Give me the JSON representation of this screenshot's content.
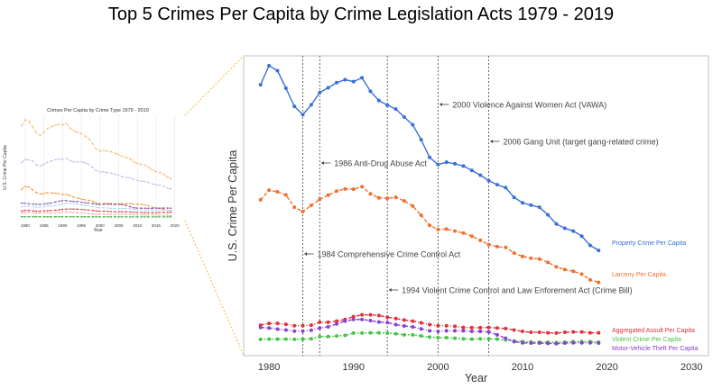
{
  "title": "Top 5 Crimes Per Capita by Crime Legislation Acts 1979 - 2019",
  "chart_data": [
    {
      "type": "line",
      "title": "",
      "xlabel": "Year",
      "ylabel": "U.S. Crime Per Capita",
      "xlim": [
        1977,
        2032
      ],
      "ylim": [
        264,
        5525
      ],
      "x_ticks": [
        1980,
        1990,
        2000,
        2010,
        2020,
        2030
      ],
      "y_ticks_shown": false,
      "grid": false,
      "legend": "labels at line ends, right",
      "x": [
        1979,
        1980,
        1981,
        1982,
        1983,
        1984,
        1985,
        1986,
        1987,
        1988,
        1989,
        1990,
        1991,
        1992,
        1993,
        1994,
        1995,
        1996,
        1997,
        1998,
        1999,
        2000,
        2001,
        2002,
        2003,
        2004,
        2005,
        2006,
        2007,
        2008,
        2009,
        2010,
        2011,
        2012,
        2013,
        2014,
        2015,
        2016,
        2017,
        2018,
        2019
      ],
      "series": [
        {
          "name": "Property Crime Per Capita",
          "color": "#3a6fd8",
          "dash": "solid",
          "values": [
            5017,
            5353,
            5264,
            4957,
            4638,
            4492,
            4666,
            4881,
            4964,
            5054,
            5107,
            5073,
            5140,
            4903,
            4740,
            4660,
            4591,
            4451,
            4316,
            4053,
            3744,
            3618,
            3658,
            3631,
            3591,
            3514,
            3432,
            3335,
            3264,
            3212,
            3041,
            2946,
            2905,
            2868,
            2734,
            2575,
            2500,
            2451,
            2362,
            2200,
            2110
          ]
        },
        {
          "name": "Larceny Per Capita",
          "color": "#f07030",
          "dash": "dashed",
          "values": [
            2999,
            3167,
            3139,
            3084,
            2869,
            2791,
            2901,
            3010,
            3081,
            3151,
            3189,
            3185,
            3229,
            3103,
            3033,
            3026,
            3043,
            2980,
            2891,
            2729,
            2551,
            2477,
            2485,
            2450,
            2416,
            2362,
            2288,
            2214,
            2177,
            2164,
            2065,
            2006,
            1975,
            1960,
            1901,
            1822,
            1775,
            1745,
            1695,
            1595,
            1550
          ]
        },
        {
          "name": "Aggregated Assult Per Capita",
          "color": "#e0303a",
          "dash": "dashdot",
          "values": [
            800,
            830,
            830,
            815,
            790,
            790,
            800,
            850,
            850,
            870,
            900,
            950,
            980,
            980,
            970,
            940,
            915,
            890,
            870,
            840,
            810,
            790,
            790,
            780,
            760,
            755,
            755,
            760,
            750,
            740,
            715,
            690,
            675,
            675,
            665,
            660,
            675,
            680,
            680,
            665,
            665
          ]
        },
        {
          "name": "Violent Crime Per Capita",
          "color": "#44c444",
          "dash": "dotted",
          "values": [
            550,
            555,
            555,
            555,
            550,
            555,
            560,
            600,
            600,
            610,
            620,
            660,
            660,
            665,
            665,
            660,
            650,
            630,
            630,
            610,
            590,
            580,
            580,
            570,
            560,
            555,
            560,
            560,
            555,
            540,
            520,
            510,
            505,
            500,
            500,
            495,
            500,
            510,
            510,
            510,
            500
          ]
        },
        {
          "name": "Motor-Vehicle Theft Per Capita",
          "color": "#8a40d0",
          "dash": "dashdot",
          "values": [
            760,
            750,
            730,
            715,
            695,
            695,
            710,
            750,
            770,
            820,
            870,
            900,
            900,
            880,
            855,
            845,
            810,
            785,
            770,
            735,
            700,
            690,
            700,
            700,
            700,
            690,
            690,
            680,
            630,
            570,
            510,
            490,
            485,
            485,
            480,
            475,
            485,
            490,
            490,
            490,
            485
          ]
        }
      ],
      "annotations": [
        {
          "year": 1984,
          "text": "1984 Comprehensive Crime Control Act"
        },
        {
          "year": 1986,
          "text": "1986 Anti-Drug Abuse Act"
        },
        {
          "year": 1994,
          "text": "1994 Violent Crime Control and Law Enforement Act (Crime Bill)"
        },
        {
          "year": 2000,
          "text": "2000 Violence Against Women Act (VAWA)"
        },
        {
          "year": 2006,
          "text": "2006 Gang Unit (target gang-related crime)"
        }
      ]
    },
    {
      "type": "line",
      "title": "Crimes Per Capita by Crime Type 1979 - 2019",
      "xlabel": "Year",
      "ylabel": "U.S. Crime Per Capita",
      "xlim": [
        1976.4,
        2022.5
      ],
      "ylim": [
        -200,
        5650
      ],
      "x_ticks": [
        1980,
        1985,
        1990,
        1995,
        2000,
        2005,
        2010,
        2015,
        2020
      ],
      "grid": true,
      "series": [
        {
          "color": "#f8b266",
          "values": [
            5017,
            5353,
            5264,
            4957,
            4638,
            4492,
            4666,
            4881,
            4964,
            5054,
            5107,
            5073,
            5140,
            4903,
            4740,
            4660,
            4591,
            4451,
            4316,
            4053,
            3744,
            3618,
            3658,
            3631,
            3591,
            3514,
            3432,
            3335,
            3264,
            3212,
            3041,
            2946,
            2905,
            2868,
            2734,
            2575,
            2500,
            2451,
            2362,
            2200,
            2110
          ]
        },
        {
          "color": "#c6b2e4",
          "values": [
            2999,
            3167,
            3139,
            3084,
            2869,
            2791,
            2901,
            3010,
            3081,
            3151,
            3189,
            3185,
            3229,
            3103,
            3033,
            3026,
            3043,
            2980,
            2891,
            2729,
            2551,
            2477,
            2485,
            2450,
            2416,
            2362,
            2288,
            2214,
            2177,
            2164,
            2065,
            2006,
            1975,
            1960,
            1901,
            1822,
            1775,
            1745,
            1695,
            1595,
            1550
          ]
        },
        {
          "color": "#f28e2b",
          "values": [
            1511,
            1684,
            1650,
            1488,
            1338,
            1264,
            1287,
            1345,
            1330,
            1309,
            1276,
            1236,
            1252,
            1168,
            1099,
            1042,
            987,
            945,
            919,
            863,
            770,
            729,
            742,
            747,
            741,
            730,
            727,
            733,
            726,
            733,
            717,
            701,
            701,
            672,
            610,
            537,
            495,
            469,
            430,
            376,
            341
          ]
        },
        {
          "color": "#a8d8ee",
          "values": [
            548,
            597,
            594,
            571,
            538,
            539,
            556,
            620,
            610,
            637,
            663,
            730,
            758,
            758,
            747,
            714,
            685,
            637,
            611,
            568,
            523,
            507,
            504,
            496,
            475,
            463,
            469,
            474,
            466,
            458,
            431,
            404,
            387,
            387,
            369,
            362,
            373,
            386,
            383,
            369,
            367
          ]
        },
        {
          "color": "#7b4fa0",
          "values": [
            760,
            750,
            730,
            715,
            695,
            695,
            710,
            750,
            770,
            820,
            870,
            900,
            900,
            880,
            855,
            845,
            810,
            785,
            770,
            735,
            700,
            690,
            700,
            700,
            700,
            690,
            690,
            680,
            630,
            570,
            510,
            490,
            485,
            485,
            480,
            475,
            485,
            490,
            490,
            490,
            485
          ]
        },
        {
          "color": "#e0313a",
          "values": [
            330,
            365,
            363,
            343,
            320,
            323,
            333,
            348,
            353,
            372,
            386,
            425,
            434,
            442,
            440,
            428,
            419,
            392,
            383,
            362,
            335,
            324,
            319,
            310,
            295,
            288,
            291,
            292,
            287,
            277,
            264,
            253,
            242,
            243,
            231,
            230,
            238,
            249,
            249,
            247,
            250
          ]
        },
        {
          "color": "#f4a6a6",
          "values": [
            218,
            251,
            259,
            239,
            217,
            205,
            209,
            226,
            213,
            221,
            233,
            257,
            273,
            264,
            256,
            238,
            221,
            202,
            187,
            166,
            150,
            145,
            149,
            146,
            142,
            137,
            141,
            150,
            148,
            145,
            133,
            119,
            114,
            113,
            110,
            102,
            102,
            103,
            98,
            86,
            81
          ]
        },
        {
          "color": "#2ca02c",
          "values": [
            10,
            10,
            10,
            9,
            8,
            8,
            8,
            9,
            8,
            8,
            9,
            9,
            10,
            9,
            10,
            9,
            8,
            7,
            7,
            6,
            6,
            6,
            6,
            6,
            6,
            6,
            6,
            6,
            6,
            5,
            5,
            5,
            5,
            5,
            5,
            4,
            5,
            5,
            5,
            5,
            5
          ]
        }
      ]
    }
  ]
}
